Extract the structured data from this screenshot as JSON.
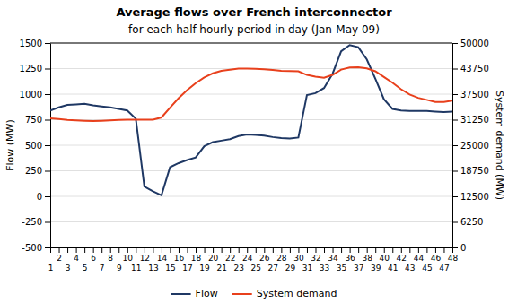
{
  "chart_data": {
    "type": "line",
    "title": "Average flows over French interconnector",
    "subtitle": "for each half-hourly period in day (Jan-May 09)",
    "ylabel": "Flow (MW)",
    "y2label": "System demand (MW)",
    "x": [
      1,
      2,
      3,
      4,
      5,
      6,
      7,
      8,
      9,
      10,
      11,
      12,
      13,
      14,
      15,
      16,
      17,
      18,
      19,
      20,
      21,
      22,
      23,
      24,
      25,
      26,
      27,
      28,
      29,
      30,
      31,
      32,
      33,
      34,
      35,
      36,
      37,
      38,
      39,
      40,
      41,
      42,
      43,
      44,
      45,
      46,
      47,
      48
    ],
    "xlim": [
      1,
      48
    ],
    "xticks": [
      1,
      2,
      3,
      4,
      5,
      6,
      7,
      8,
      9,
      10,
      11,
      12,
      13,
      14,
      15,
      16,
      17,
      18,
      19,
      20,
      21,
      22,
      23,
      24,
      25,
      26,
      27,
      28,
      29,
      30,
      31,
      32,
      33,
      34,
      35,
      36,
      37,
      38,
      39,
      40,
      41,
      42,
      43,
      44,
      45,
      46,
      47,
      48
    ],
    "ylim": [
      -500,
      1500
    ],
    "yticks": [
      -500,
      -250,
      0,
      250,
      500,
      750,
      1000,
      1250,
      1500
    ],
    "y2lim": [
      0,
      50000
    ],
    "y2ticks": [
      0,
      6250,
      12500,
      18750,
      25000,
      31250,
      37500,
      43750,
      50000
    ],
    "series": [
      {
        "name": "Flow",
        "color": "#1F3864",
        "values": [
          840,
          870,
          895,
          900,
          905,
          890,
          880,
          870,
          855,
          840,
          760,
          95,
          50,
          10,
          285,
          325,
          355,
          380,
          490,
          530,
          545,
          560,
          590,
          605,
          600,
          595,
          580,
          570,
          565,
          575,
          990,
          1010,
          1060,
          1200,
          1420,
          1480,
          1460,
          1340,
          1150,
          950,
          855,
          840,
          835,
          835,
          835,
          830,
          825,
          830
        ]
      },
      {
        "name": "System demand",
        "color": "#E8401C",
        "axis": "y2",
        "values": [
          31600,
          31400,
          31200,
          31100,
          31000,
          30900,
          31000,
          31100,
          31200,
          31250,
          31250,
          31250,
          31250,
          31800,
          34200,
          36500,
          38500,
          40200,
          41600,
          42600,
          43200,
          43500,
          43750,
          43750,
          43700,
          43600,
          43400,
          43200,
          43150,
          43100,
          42200,
          41800,
          41500,
          42200,
          43500,
          44000,
          44100,
          43800,
          43100,
          41700,
          40300,
          38700,
          37400,
          36600,
          36100,
          35600,
          35600,
          35900
        ]
      }
    ],
    "grid": true,
    "legend": "bottom"
  }
}
